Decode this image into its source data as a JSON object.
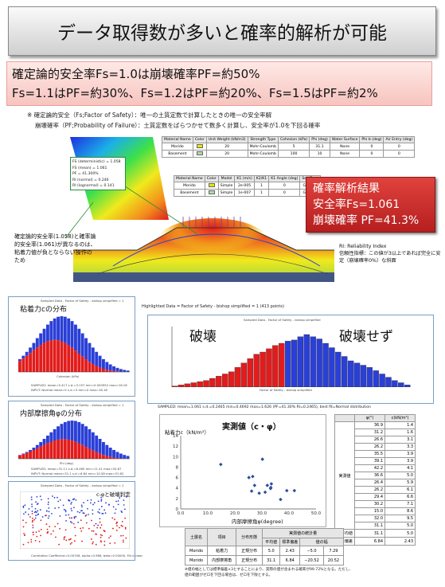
{
  "title": "データ取得数が多いと確率的解析が可能",
  "summary": {
    "line1": "確定論的安全率Fs=1.0は崩壊確率PF=約50%",
    "line2": "Fs=1.1はPF=約30%、Fs=1.2はPF=約20%、Fs=1.5はPF=約2%"
  },
  "notes": {
    "note1": "※ 確定論的安全（Fs;Factor of Safety）：唯一の土質定数で計算したときの唯一の安全率解",
    "note2": "崩壊確率（PF;Probability of Failure）：土質定数をばらつかせて数多く計算し、安全率が1.0を下回る確率"
  },
  "material_table_1": {
    "headers": [
      "Material Name",
      "Color",
      "Unit Weight (kN/m3)",
      "Strength Type",
      "Cohesion (kPa)",
      "Phi (deg)",
      "Water Surface",
      "Phi b (deg)",
      "Air Entry (deg)"
    ],
    "rows": [
      [
        "Morido",
        "",
        "20",
        "Mohr-Coulomb",
        "5",
        "31.1",
        "None",
        "0",
        "0"
      ],
      [
        "Basement",
        "",
        "20",
        "Mohr-Coulomb",
        "100",
        "10",
        "None",
        "0",
        "0"
      ]
    ],
    "colors": [
      "#e8e800",
      "#b7d9a8"
    ]
  },
  "material_table_2": {
    "headers": [
      "Material Name",
      "Color",
      "Model",
      "K1 (m/s)",
      "K2/K1",
      "K1 Angle (deg)",
      "Soil Type"
    ],
    "rows": [
      [
        "Morido",
        "",
        "Simple",
        "2e-005",
        "1",
        "0",
        "General"
      ],
      [
        "Basement",
        "",
        "Simple",
        "1e-007",
        "1",
        "0",
        "General"
      ]
    ],
    "colors": [
      "#e8e800",
      "#b7d9a8"
    ]
  },
  "slope_popup": {
    "lines": [
      "FS (deterministic) = 1.058",
      "FS (mean) = 1.061",
      "PF = 41.300%",
      "RI (normal) = 0.246",
      "RI (lognormal) = 0.141"
    ]
  },
  "result_box": {
    "title": "確率解析結果",
    "fs": "安全率Fs=1.061",
    "pf": "崩壊確率 PF=41.3%"
  },
  "left_annotation": "確定論的安全率(1.058)と確率論的安全率(1.061)が異なるのは、粘着力値が負とならない操作のため",
  "right_annotation": {
    "line1": "RI: Reliability Index",
    "line2": "信頼性指標：この値が3以上であれば完全に安定（崩壊確率0%）な斜面"
  },
  "slope_caption": "Highlighted Data = Factor of Safety - bishop simplified = 1   (413 points)",
  "hist_cohesion": {
    "title": "粘着力cの分布",
    "header": "Sampled Data - Factor of Safety - bishop simplified = 1",
    "xlabel": "Cohesion (kPa)",
    "footer1": "SAMPLED: mean=5.417 s.d.=3.157 min=0.000952 max=16.18",
    "footer2": "INPUT: Normal mean=5 s.d.=3 min=0 max=16.18"
  },
  "hist_phi": {
    "title": "内部摩擦角φの分布",
    "header": "Sampled Data - Factor of Safety - bishop simplified = 1",
    "xlabel": "Phi (deg)",
    "footer1": "SAMPLED: mean=31.11 s.d.=6.465 min=11.41 max=50.67",
    "footer2": "INPUT: Normal mean=31.1 s.d.=6.84 min=10.58 max=51.62"
  },
  "scatter_small": {
    "title": "c-φと破壊判定",
    "header": "Sampled Data - Factor of Safety - bishop simplified = 1",
    "footer": "Correlation Coefficient=0.00708, alpha=0.966, beta=0.00000, Fit=Linear"
  },
  "hist_fs": {
    "header": "Sampled Data - Factor of Safety - bishop simplified",
    "label_fail": "破壊",
    "label_safe": "破壊せず",
    "xlabel": "Factor of Safety - bishop simplified",
    "ylabel": "Relative Frequency",
    "footer": "SAMPLED: mean=1.061 s.d.=0.2465 min=0.4692 max=1.626 (PF=41.30% RI=0.2465), best fit=Normal distribution"
  },
  "measured_chart": {
    "title": "実測値（c・φ）",
    "ylabel": "粘着力c（kN/m²）",
    "xlabel": "内部摩擦角φ(degree)",
    "x_ticks": [
      "0.0",
      "10.0",
      "20.0",
      "30.0",
      "40.0",
      "50.0"
    ],
    "y_ticks": [
      "0",
      "2",
      "4",
      "6",
      "8",
      "10",
      "12",
      "14"
    ]
  },
  "chart_data": [
    {
      "type": "scatter",
      "title": "実測値（c・φ）",
      "xlabel": "内部摩擦角φ(degree)",
      "ylabel": "粘着力c（kN/m²）",
      "xlim": [
        0,
        50
      ],
      "ylim": [
        0,
        14
      ],
      "x": [
        14.8,
        25.2,
        26.6,
        33.5,
        32.0,
        36.9,
        31.2,
        26.2,
        33.2,
        39.2,
        27.3,
        33.3,
        29.0,
        30.2,
        42.0
      ],
      "y": [
        8.5,
        6.0,
        6.2,
        4.8,
        4.5,
        1.8,
        3.2,
        3.4,
        3.9,
        3.5,
        4.5,
        4.1,
        3.0,
        9.5,
        3.5
      ]
    },
    {
      "type": "bar",
      "title": "",
      "xlabel": "Factor of Safety - bishop simplified",
      "ylabel": "Relative Frequency",
      "categories": [
        "0.47",
        "0.50",
        "0.53",
        "0.56",
        "0.59",
        "0.62",
        "0.65",
        "0.68",
        "0.71",
        "0.74",
        "0.77",
        "0.80",
        "0.83",
        "0.86",
        "0.89",
        "0.92",
        "0.95",
        "0.98",
        "1.01",
        "1.04",
        "1.07",
        "1.10",
        "1.13",
        "1.16",
        "1.19",
        "1.22",
        "1.25",
        "1.28",
        "1.31",
        "1.34",
        "1.37",
        "1.40",
        "1.43",
        "1.46",
        "1.49",
        "1.52",
        "1.55",
        "1.58"
      ],
      "values": [
        0.1,
        0.2,
        0.3,
        0.4,
        0.5,
        0.6,
        0.8,
        1.0,
        1.2,
        1.4,
        1.8,
        2.2,
        2.6,
        3.0,
        3.2,
        3.5,
        3.8,
        4.0,
        4.2,
        4.3,
        4.6,
        4.8,
        4.6,
        4.4,
        4.0,
        3.6,
        3.2,
        2.8,
        2.4,
        2.2,
        2.0,
        1.8,
        1.5,
        1.2,
        0.9,
        0.6,
        0.4,
        0.2
      ],
      "split_at": 1.0,
      "colors": {
        "fail": "#e21c1c",
        "safe": "#2a3fd6"
      }
    }
  ],
  "measured_table": {
    "headers": [
      "φ(°)",
      "c(kN/m²)"
    ],
    "row_label": "実測値",
    "rows": [
      [
        "36.9",
        "1.4"
      ],
      [
        "31.2",
        "1.6"
      ],
      [
        "26.6",
        "3.1"
      ],
      [
        "26.2",
        "3.3"
      ],
      [
        "35.5",
        "3.9"
      ],
      [
        "39.1",
        "3.9"
      ],
      [
        "42.2",
        "4.1"
      ],
      [
        "36.6",
        "5.0"
      ],
      [
        "26.4",
        "5.9"
      ],
      [
        "26.2",
        "6.1"
      ],
      [
        "29.4",
        "6.6"
      ],
      [
        "30.2",
        "7.1"
      ],
      [
        "15.0",
        "8.6"
      ],
      [
        "32.0",
        "9.5"
      ],
      [
        "31.1",
        "5.0"
      ]
    ],
    "mean_label": "平均値",
    "mean_values": [
      "31.1",
      "5.0"
    ],
    "sd_label": "標準偏差",
    "sd_values": [
      "6.84",
      "2.43"
    ]
  },
  "stats_table": {
    "headers_top": [
      "土層名",
      "項目",
      "分布形態",
      "実測値の統計量"
    ],
    "headers_sub": [
      "平均値",
      "標準偏差",
      "値の幅"
    ],
    "rows": [
      [
        "Morido",
        "粘着力",
        "正規分布",
        "5.0",
        "2.43",
        "−5.0",
        "7.29"
      ],
      [
        "Morido",
        "内部摩擦角",
        "正規分布",
        "31.1",
        "6.84",
        "−20.52",
        "20.52"
      ]
    ],
    "footnote1": "※値の幅としては標準偏差×3とすることにより、実際の値が含まれる確率が99.72%となる。ただし、",
    "footnote2": "値の範囲がゼロを下回る場合は、ゼロを下限とする。"
  }
}
